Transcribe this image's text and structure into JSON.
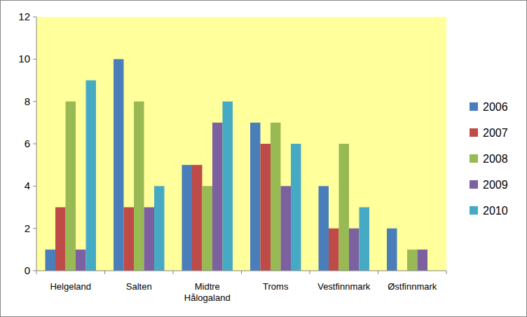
{
  "chart_data": {
    "type": "bar",
    "categories": [
      "Helgeland",
      "Salten",
      "Midtre Hålogaland",
      "Troms",
      "Vestfinnmark",
      "Østfinnmark"
    ],
    "series": [
      {
        "name": "2006",
        "color": "#4a7ebb",
        "values": [
          1,
          10,
          5,
          7,
          4,
          2
        ]
      },
      {
        "name": "2007",
        "color": "#be4b48",
        "values": [
          3,
          3,
          5,
          6,
          2,
          0
        ]
      },
      {
        "name": "2008",
        "color": "#98b954",
        "values": [
          8,
          8,
          4,
          7,
          6,
          1
        ]
      },
      {
        "name": "2009",
        "color": "#7d60a0",
        "values": [
          1,
          3,
          7,
          4,
          2,
          1
        ]
      },
      {
        "name": "2010",
        "color": "#46aac5",
        "values": [
          9,
          4,
          8,
          6,
          3,
          0
        ]
      }
    ],
    "ylim": [
      0,
      12
    ],
    "yticks": [
      0,
      2,
      4,
      6,
      8,
      10,
      12
    ],
    "grid": false,
    "legend": "right"
  }
}
